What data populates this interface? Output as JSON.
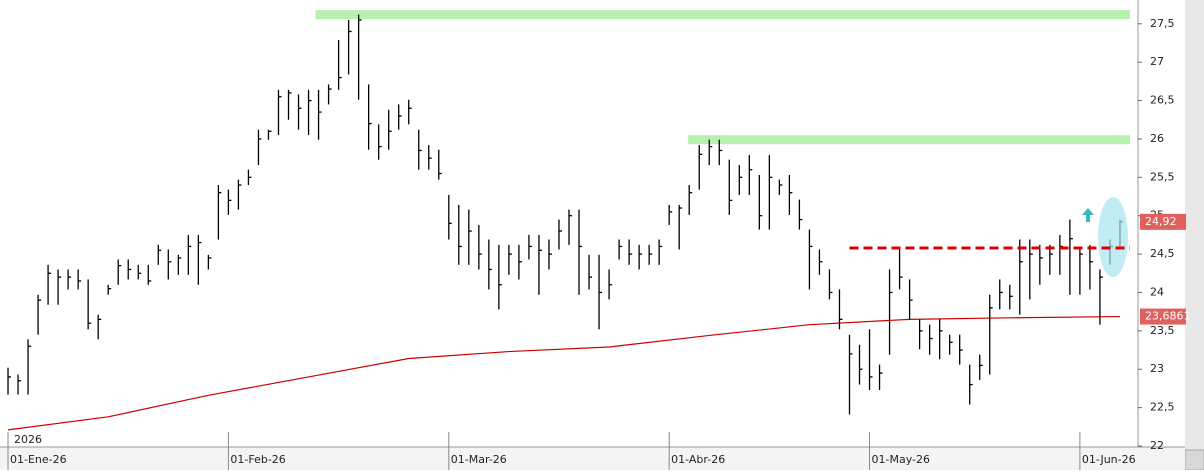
{
  "chart_data": {
    "type": "ohlc",
    "year_label": "2026",
    "xlim": [
      -0.8,
      112.8
    ],
    "xticks": [
      {
        "value": 0,
        "label": "01-Ene-26"
      },
      {
        "value": 22,
        "label": "01-Feb-26"
      },
      {
        "value": 44,
        "label": "01-Mar-26"
      },
      {
        "value": 66,
        "label": "01-Abr-26"
      },
      {
        "value": 86,
        "label": "01-May-26"
      },
      {
        "value": 107,
        "label": "01-Jun-26"
      }
    ],
    "ylim": [
      22.0,
      27.81
    ],
    "yticks": [
      {
        "value": 22,
        "label": "22"
      },
      {
        "value": 22.5,
        "label": "22,5"
      },
      {
        "value": 23,
        "label": "23"
      },
      {
        "value": 23.5,
        "label": "23,5"
      },
      {
        "value": 24,
        "label": "24"
      },
      {
        "value": 24.5,
        "label": "24,5"
      },
      {
        "value": 25,
        "label": "25"
      },
      {
        "value": 25.5,
        "label": "25,5"
      },
      {
        "value": 26,
        "label": "26"
      },
      {
        "value": 26.5,
        "label": "26,5"
      },
      {
        "value": 27,
        "label": "27"
      },
      {
        "value": 27.5,
        "label": "27,5"
      }
    ],
    "color": "#000000",
    "high": [
      23.02,
      22.93,
      23.39,
      23.97,
      24.36,
      24.3,
      24.3,
      24.3,
      24.17,
      23.71,
      24.1,
      24.43,
      24.43,
      24.36,
      24.36,
      24.62,
      24.56,
      24.49,
      24.75,
      24.75,
      24.49,
      25.4,
      25.34,
      25.47,
      25.6,
      26.12,
      26.12,
      26.64,
      26.64,
      26.58,
      26.64,
      26.64,
      26.71,
      27.29,
      27.55,
      27.62,
      26.71,
      26.19,
      26.38,
      26.45,
      26.51,
      26.12,
      25.92,
      25.86,
      25.27,
      25.14,
      25.08,
      24.88,
      24.69,
      24.62,
      24.62,
      24.62,
      24.75,
      24.75,
      24.69,
      24.95,
      25.08,
      25.08,
      24.49,
      24.49,
      24.3,
      24.69,
      24.69,
      24.62,
      24.62,
      24.69,
      25.14,
      25.14,
      25.4,
      25.92,
      25.99,
      25.99,
      25.73,
      25.66,
      25.79,
      25.53,
      25.79,
      25.47,
      25.53,
      25.21,
      24.82,
      24.56,
      24.3,
      24.04,
      23.45,
      23.32,
      23.52,
      23.06,
      24.3,
      24.56,
      24.17,
      23.65,
      23.58,
      23.65,
      23.45,
      23.45,
      23.06,
      23.19,
      23.97,
      24.17,
      24.1,
      24.69,
      24.69,
      24.62,
      24.62,
      24.75,
      24.95,
      24.56,
      24.62,
      24.3,
      24.69,
      24.95
    ],
    "low": [
      22.67,
      22.67,
      22.67,
      23.45,
      23.84,
      23.84,
      24.04,
      24.04,
      23.52,
      23.39,
      23.97,
      24.1,
      24.17,
      24.17,
      24.1,
      24.36,
      24.17,
      24.23,
      24.23,
      24.1,
      24.3,
      24.69,
      25.01,
      25.08,
      25.4,
      25.66,
      25.99,
      26.05,
      26.25,
      26.12,
      26.05,
      25.99,
      26.45,
      26.64,
      26.84,
      26.51,
      25.86,
      25.73,
      25.86,
      26.12,
      26.19,
      25.6,
      25.6,
      25.47,
      24.69,
      24.36,
      24.36,
      24.3,
      24.04,
      23.78,
      24.23,
      24.17,
      24.43,
      23.97,
      24.3,
      24.56,
      24.62,
      23.97,
      24.04,
      23.52,
      23.91,
      24.43,
      24.36,
      24.3,
      24.36,
      24.36,
      24.88,
      24.56,
      25.01,
      25.34,
      25.66,
      25.66,
      25.01,
      25.27,
      25.27,
      24.82,
      24.82,
      25.27,
      25.01,
      24.82,
      24.04,
      24.23,
      23.91,
      23.52,
      22.41,
      22.8,
      22.73,
      22.73,
      23.19,
      24.04,
      23.65,
      23.26,
      23.19,
      23.13,
      23.19,
      23.06,
      22.54,
      22.86,
      22.93,
      23.78,
      23.78,
      23.71,
      23.91,
      24.1,
      24.23,
      24.23,
      23.97,
      23.97,
      24.04,
      23.58,
      24.36,
      24.56
    ],
    "close": [
      22.9,
      22.85,
      23.3,
      23.9,
      24.25,
      24.2,
      24.2,
      24.15,
      23.6,
      23.65,
      24.05,
      24.35,
      24.3,
      24.25,
      24.15,
      24.55,
      24.4,
      24.45,
      24.6,
      24.65,
      24.45,
      25.3,
      25.2,
      25.4,
      25.5,
      26.0,
      26.1,
      26.55,
      26.6,
      26.4,
      26.5,
      26.35,
      26.65,
      26.8,
      27.4,
      27.55,
      26.2,
      25.9,
      26.1,
      26.3,
      26.4,
      25.85,
      25.75,
      25.55,
      24.9,
      24.6,
      24.8,
      24.5,
      24.3,
      24.1,
      24.5,
      24.4,
      24.6,
      24.55,
      24.5,
      24.8,
      25.0,
      24.6,
      24.2,
      24.0,
      24.1,
      24.6,
      24.5,
      24.5,
      24.5,
      24.6,
      25.05,
      25.1,
      25.3,
      25.8,
      25.9,
      25.85,
      25.2,
      25.5,
      25.6,
      25.0,
      25.5,
      25.4,
      25.3,
      24.95,
      24.6,
      24.4,
      24.0,
      23.65,
      23.2,
      23.0,
      22.9,
      22.95,
      24.0,
      24.2,
      23.9,
      23.5,
      23.4,
      23.5,
      23.35,
      23.25,
      22.8,
      23.05,
      23.8,
      24.0,
      23.95,
      24.4,
      24.5,
      24.45,
      24.5,
      24.6,
      24.7,
      24.5,
      24.4,
      24.2,
      24.6,
      24.92
    ],
    "sma": {
      "name": "sma",
      "color": "#cc0000",
      "x": [
        0,
        10,
        20,
        30,
        40,
        50,
        60,
        70,
        80,
        90,
        100,
        111
      ],
      "values": [
        22.21,
        22.38,
        22.66,
        22.9,
        23.14,
        23.23,
        23.29,
        23.44,
        23.58,
        23.65,
        23.67,
        23.6861
      ]
    },
    "levels": [
      {
        "value": 27.62,
        "x": [
          30.7,
          112.0
        ],
        "color": "#b8f0b0",
        "style": "band"
      },
      {
        "value": 25.99,
        "x": [
          67.9,
          112.0
        ],
        "color": "#b8f0b0",
        "style": "band"
      },
      {
        "value": 24.58,
        "x": [
          84.0,
          112.0
        ],
        "color": "#dd0000",
        "style": "dashed"
      }
    ],
    "markers": [
      {
        "value": 24.92,
        "label": "24,92",
        "color": "#e06060"
      },
      {
        "value": 23.6861,
        "label": "23,6861",
        "color": "#e06060"
      }
    ]
  }
}
